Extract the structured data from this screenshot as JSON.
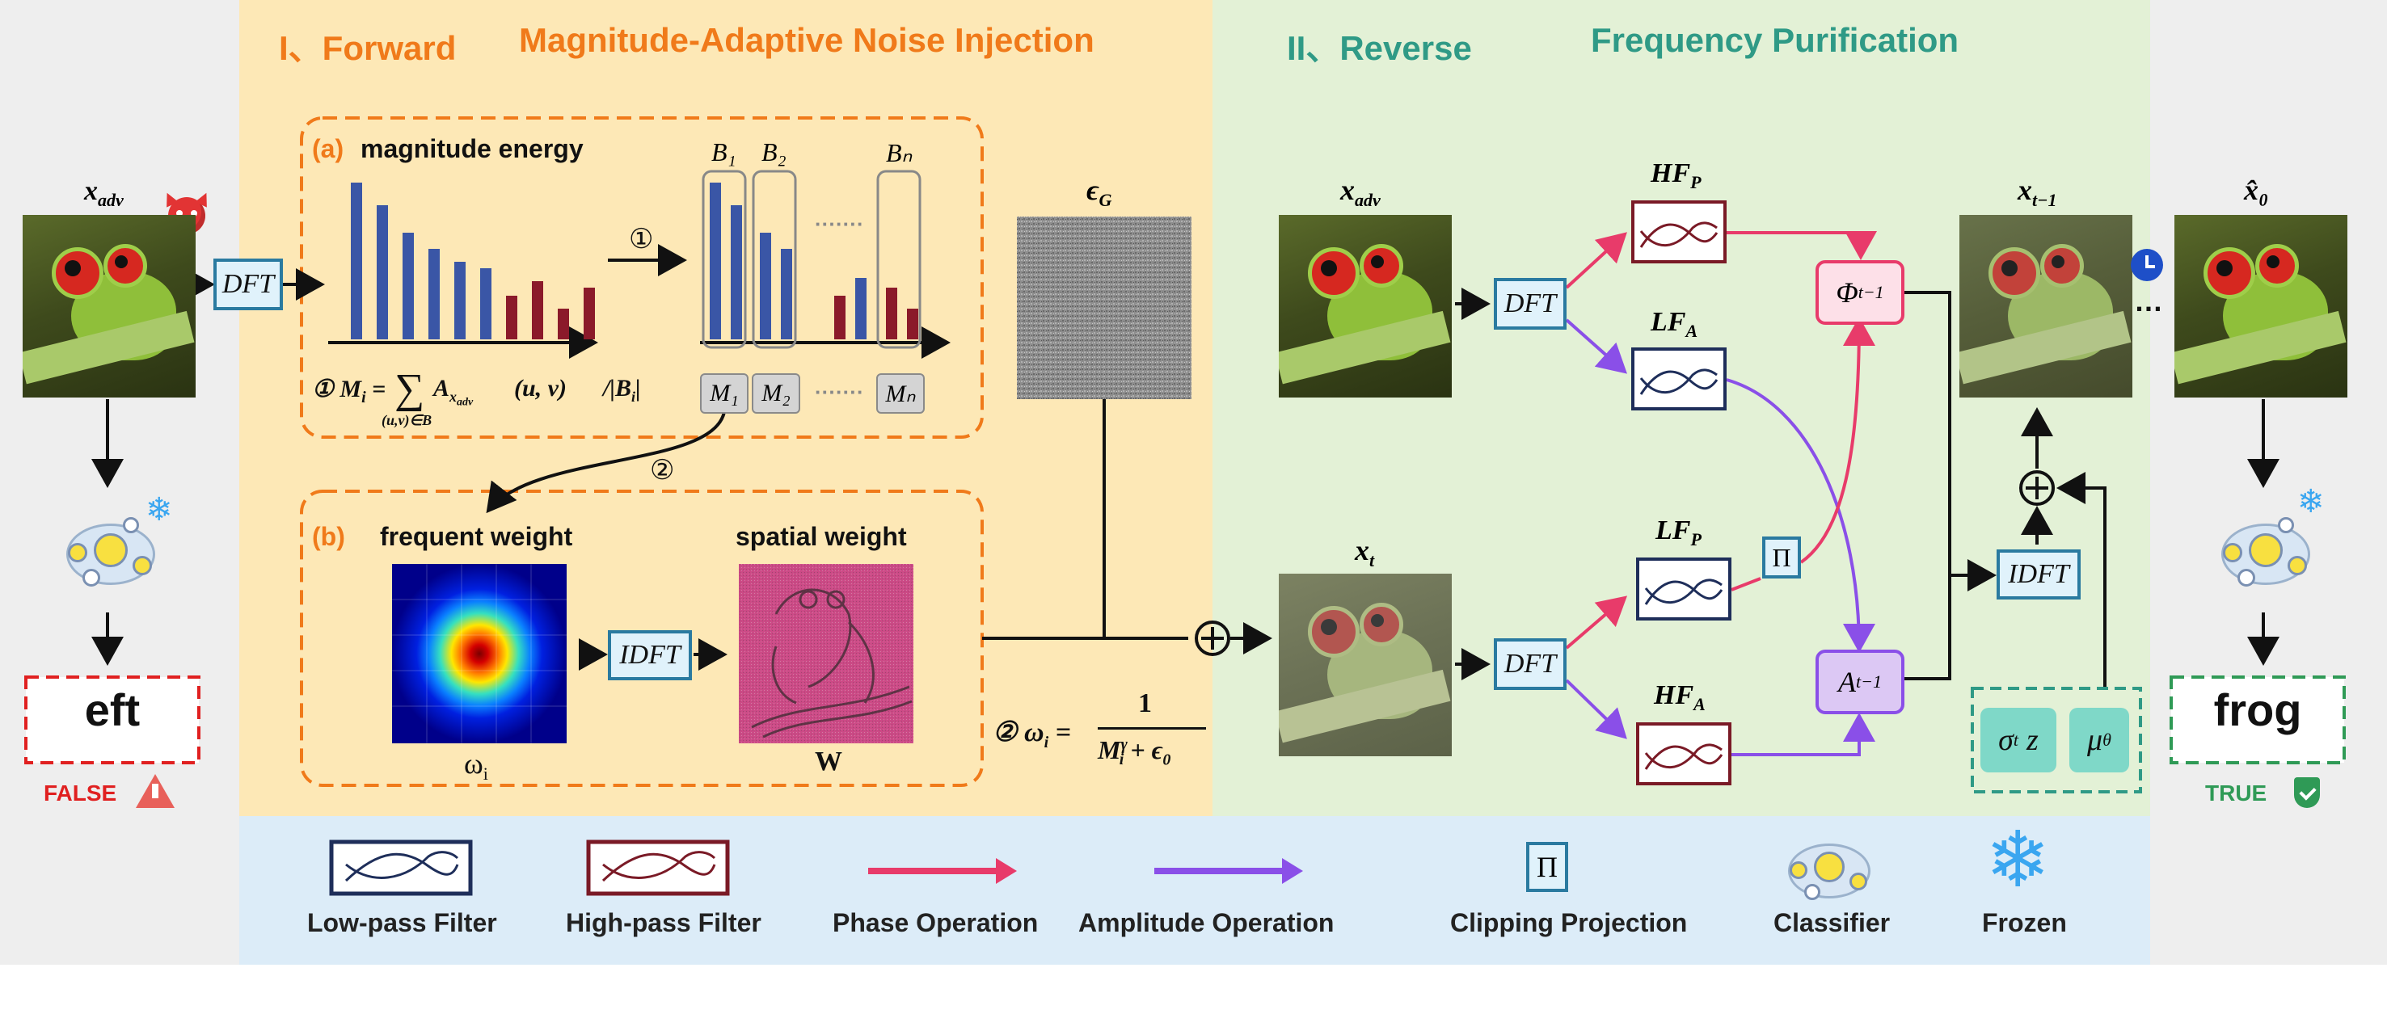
{
  "section_forward": {
    "num": "I、",
    "name": "Forward",
    "desc": "Magnitude-Adaptive Noise Injection"
  },
  "section_reverse": {
    "num": "II、",
    "name": "Reverse",
    "desc": "Frequency Purification"
  },
  "left": {
    "input_label": "x_adv",
    "dft": "DFT",
    "pred": "eft",
    "status": "FALSE"
  },
  "right": {
    "output_label": "x̂₀",
    "pred": "frog",
    "status": "TRUE",
    "ellipsis": "…"
  },
  "panel_a": {
    "tag": "(a)",
    "title": "magnitude energy",
    "step1": "①",
    "bands": [
      "B₁",
      "B₂",
      "Bₙ"
    ],
    "dots": "·······",
    "mboxes": [
      "M₁",
      "M₂",
      "Mₙ"
    ],
    "formula": {
      "prefix": "① M",
      "sub_i": "i",
      "eq": " = ",
      "sum": "∑",
      "sum_sub": "(u,v)∈B",
      "A": "A",
      "A_sub": "x",
      "A_subsub": "adv",
      "args": "(u, v)",
      "div": "/|B",
      "div_end": "|"
    }
  },
  "panel_b": {
    "tag": "(b)",
    "title_freq": "frequent weight",
    "title_spatial": "spatial weight",
    "omega": "ω",
    "omega_sub": "i",
    "idft": "IDFT",
    "W": "W",
    "step2": "②"
  },
  "noise": {
    "label": "ϵ",
    "sub": "G"
  },
  "weight_formula": {
    "prefix": "② ω",
    "sub": "i",
    "eq": " = ",
    "num": "1",
    "den_M": "M",
    "den_sup": "γ",
    "den_sub": "i",
    "den_plus": " + ϵ",
    "den_sub2": "0"
  },
  "reverse": {
    "x_adv": "x_adv",
    "x_t": "x_t",
    "x_tm1": "x",
    "x_tm1_sub": "t−1",
    "dft1": "DFT",
    "dft2": "DFT",
    "idft": "IDFT",
    "hfp": "HF",
    "hfp_sub": "P",
    "lfa": "LF",
    "lfa_sub": "A",
    "lfp": "LF",
    "lfp_sub": "P",
    "hfa": "HF",
    "hfa_sub": "A",
    "phi": "Φ",
    "phi_sup": "t−1",
    "amp": "A",
    "amp_sup": "t−1",
    "pi": "Π",
    "sigma": "σ",
    "sigma_sub": "t",
    "z": "z",
    "mu": "μ",
    "mu_sub": "θ"
  },
  "legend": {
    "low_pass": "Low-pass Filter",
    "high_pass": "High-pass Filter",
    "phase": "Phase Operation",
    "amplitude": "Amplitude Operation",
    "clip": "Clipping Projection",
    "pi": "Π",
    "classifier": "Classifier",
    "frozen": "Frozen"
  },
  "chart_bars": {
    "left_heights": [
      0.97,
      0.83,
      0.66,
      0.56,
      0.48,
      0.44,
      0.27,
      0.36,
      0.19,
      0.32
    ],
    "left_colors": [
      "#3a56a6",
      "#3a56a6",
      "#3a56a6",
      "#3a56a6",
      "#3a56a6",
      "#3a56a6",
      "#8b1a2a",
      "#8b1a2a",
      "#8b1a2a",
      "#8b1a2a"
    ],
    "right_heights": [
      0.97,
      0.83,
      0.66,
      0.56,
      0.27,
      0.38,
      0.32,
      0.19
    ],
    "right_colors": [
      "#3a56a6",
      "#3a56a6",
      "#3a56a6",
      "#3a56a6",
      "#8b1a2a",
      "#3a56a6",
      "#8b1a2a",
      "#8b1a2a"
    ]
  },
  "colors": {
    "phase": "#e83b6a",
    "amplitude": "#8a4fe8",
    "orange": "#f07a1a",
    "teal": "#2f9a86"
  }
}
